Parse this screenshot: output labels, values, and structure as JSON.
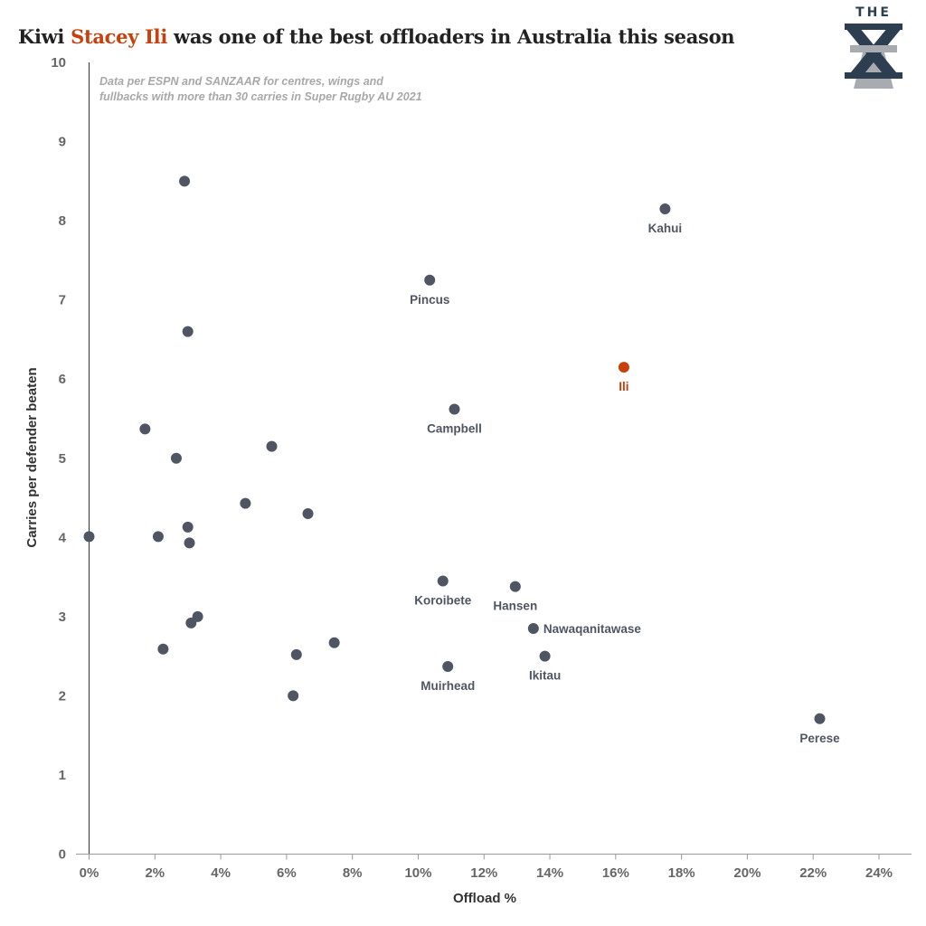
{
  "title": {
    "prefix": "Kiwi ",
    "highlight": "Stacey Ili",
    "suffix": " was one of the best offloaders in Australia this season"
  },
  "logo": {
    "text": "THE",
    "icon": "the-xv-logo-icon",
    "colors": [
      "#2c3e50",
      "#a8acb0"
    ]
  },
  "colors": {
    "point": "#505563",
    "highlight": "#c8410c",
    "axis": "#333333",
    "note": "#a8a8a8"
  },
  "chart_data": {
    "type": "scatter",
    "title": "Kiwi Stacey Ili was one of the best offloaders in Australia this season",
    "xlabel": "Offload %",
    "ylabel": "Carries per defender beaten",
    "xlim": [
      0,
      24
    ],
    "ylim": [
      0,
      10
    ],
    "xticks": [
      0,
      2,
      4,
      6,
      8,
      10,
      12,
      14,
      16,
      18,
      20,
      22,
      24
    ],
    "xtick_labels": [
      "0%",
      "2%",
      "4%",
      "6%",
      "8%",
      "10%",
      "12%",
      "14%",
      "16%",
      "18%",
      "20%",
      "22%",
      "24%"
    ],
    "yticks": [
      0,
      1,
      2,
      3,
      4,
      5,
      6,
      7,
      8,
      9,
      10
    ],
    "ytick_labels": [
      "0",
      "1",
      "2",
      "3",
      "4",
      "5",
      "6",
      "7",
      "8",
      "9",
      "10"
    ],
    "grid": false,
    "annotation": [
      "Data per ESPN and SANZAAR for centres, wings and",
      "fullbacks with more than 30 carries in Super Rugby AU 2021"
    ],
    "points": [
      {
        "x": 2.9,
        "y": 8.5
      },
      {
        "x": 17.5,
        "y": 8.15,
        "label": "Kahui",
        "label_pos": "below"
      },
      {
        "x": 10.35,
        "y": 7.25,
        "label": "Pincus",
        "label_pos": "below"
      },
      {
        "x": 3.0,
        "y": 6.6
      },
      {
        "x": 16.25,
        "y": 6.15,
        "label": "Ili",
        "label_pos": "below",
        "highlight": true
      },
      {
        "x": 11.1,
        "y": 5.62,
        "label": "Campbell",
        "label_pos": "below"
      },
      {
        "x": 1.7,
        "y": 5.37
      },
      {
        "x": 5.55,
        "y": 5.15
      },
      {
        "x": 2.65,
        "y": 5.0
      },
      {
        "x": 4.75,
        "y": 4.43
      },
      {
        "x": 6.65,
        "y": 4.3
      },
      {
        "x": 3.0,
        "y": 4.13
      },
      {
        "x": 0.0,
        "y": 4.01
      },
      {
        "x": 2.1,
        "y": 4.01
      },
      {
        "x": 3.05,
        "y": 3.93
      },
      {
        "x": 10.75,
        "y": 3.45,
        "label": "Koroibete",
        "label_pos": "below"
      },
      {
        "x": 12.95,
        "y": 3.38,
        "label": "Hansen",
        "label_pos": "below"
      },
      {
        "x": 3.3,
        "y": 3.0
      },
      {
        "x": 3.1,
        "y": 2.92
      },
      {
        "x": 13.5,
        "y": 2.85,
        "label": "Nawaqanitawase",
        "label_pos": "right"
      },
      {
        "x": 7.45,
        "y": 2.67
      },
      {
        "x": 2.25,
        "y": 2.59
      },
      {
        "x": 6.3,
        "y": 2.52
      },
      {
        "x": 13.85,
        "y": 2.5,
        "label": "Ikitau",
        "label_pos": "below"
      },
      {
        "x": 10.9,
        "y": 2.37,
        "label": "Muirhead",
        "label_pos": "below"
      },
      {
        "x": 6.2,
        "y": 2.0
      },
      {
        "x": 22.2,
        "y": 1.71,
        "label": "Perese",
        "label_pos": "below"
      }
    ]
  }
}
